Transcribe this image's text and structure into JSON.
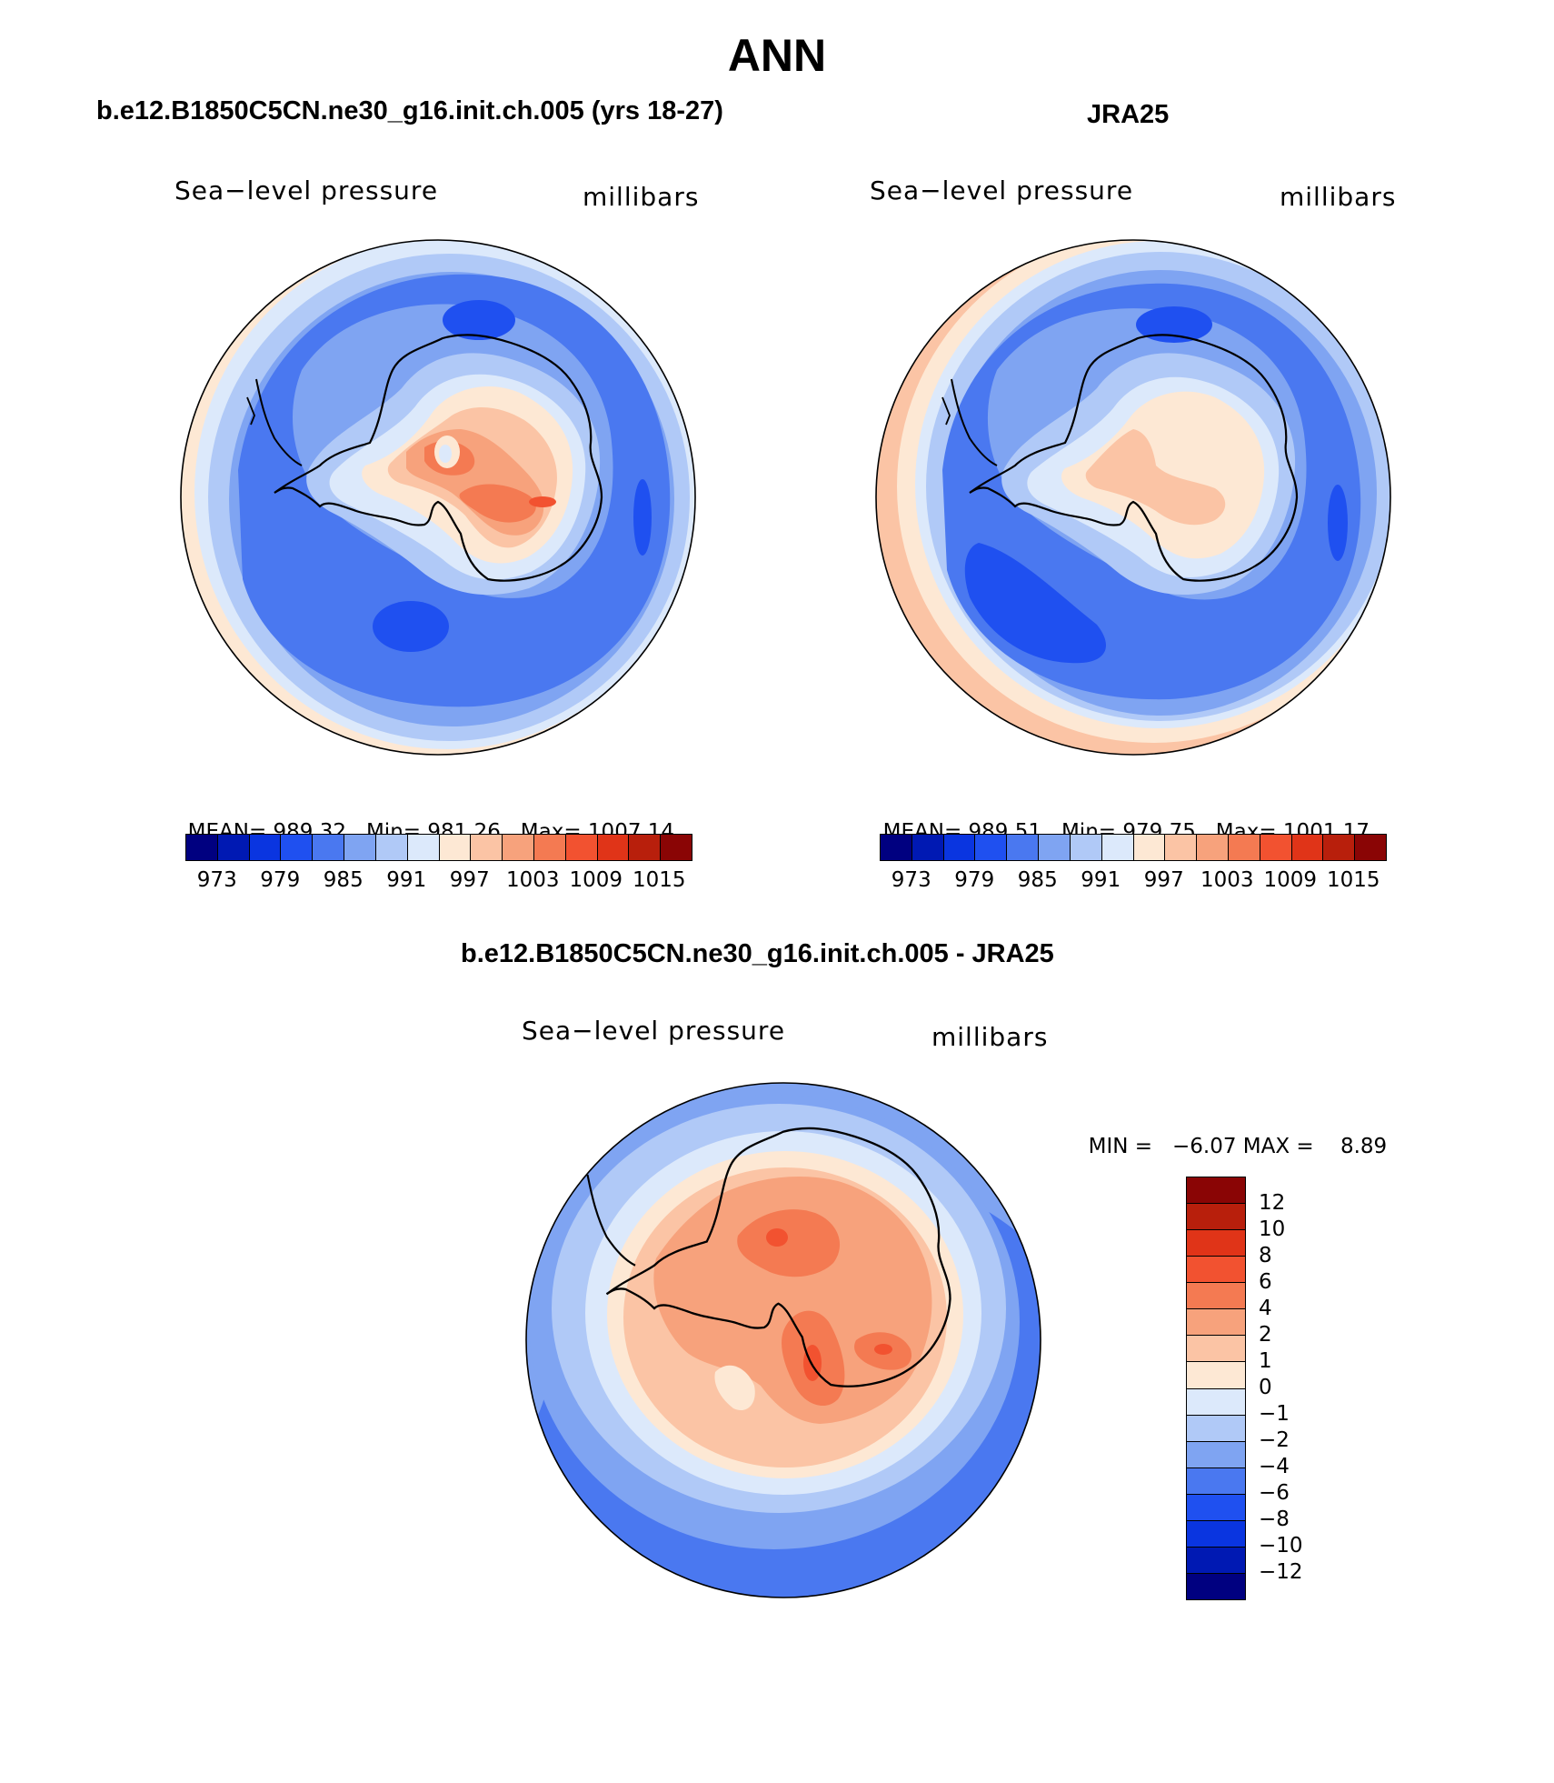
{
  "main_title": "ANN",
  "panels": [
    {
      "id": "model",
      "title": "b.e12.B1850C5CN.ne30_g16.init.ch.005 (yrs 18-27)",
      "left_label": "Sea−level pressure",
      "right_label": "millibars",
      "stats": {
        "mean_label": "MEAN=",
        "mean": "989.32",
        "min_label": "Min=",
        "min": "981.26",
        "max_label": "Max=",
        "max": "1007.14"
      }
    },
    {
      "id": "obs",
      "title": "JRA25",
      "left_label": "Sea−level pressure",
      "right_label": "millibars",
      "stats": {
        "mean_label": "MEAN=",
        "mean": "989.51",
        "min_label": "Min=",
        "min": "979.75",
        "max_label": "Max=",
        "max": "1001.17"
      }
    },
    {
      "id": "diff",
      "title": "b.e12.B1850C5CN.ne30_g16.init.ch.005 - JRA25",
      "left_label": "Sea−level pressure",
      "right_label": "millibars",
      "stats": {
        "min_label": "MIN =",
        "min": "−6.07",
        "max_label": "MAX =",
        "max": "8.89"
      }
    }
  ],
  "colorbar_abs": {
    "tick_labels": [
      "973",
      "979",
      "985",
      "991",
      "997",
      "1003",
      "1009",
      "1015"
    ],
    "colors": [
      "#000080",
      "#0019b3",
      "#0a35e0",
      "#1f50f0",
      "#4a78f0",
      "#7fa4f2",
      "#b0c9f7",
      "#dce9fb",
      "#fde8d4",
      "#fbc4a5",
      "#f7a27c",
      "#f47a52",
      "#f25230",
      "#e03418",
      "#b81f0c",
      "#8a0505"
    ]
  },
  "colorbar_diff": {
    "tick_labels": [
      "12",
      "10",
      "8",
      "6",
      "4",
      "2",
      "1",
      "0",
      "−1",
      "−2",
      "−4",
      "−6",
      "−8",
      "−10",
      "−12"
    ],
    "colors": [
      "#8a0505",
      "#b81f0c",
      "#e03418",
      "#f25230",
      "#f47a52",
      "#f7a27c",
      "#fbc4a5",
      "#fde8d4",
      "#dce9fb",
      "#b0c9f7",
      "#7fa4f2",
      "#4a78f0",
      "#1f50f0",
      "#0a35e0",
      "#0019b3",
      "#000080"
    ]
  }
}
